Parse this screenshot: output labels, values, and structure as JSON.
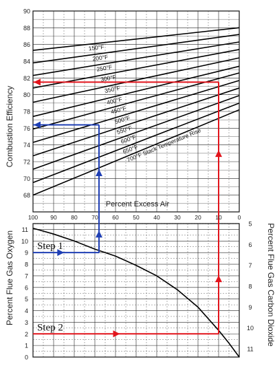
{
  "chart_data": [
    {
      "type": "line",
      "title": "",
      "ylabel": "Combustion Efficiency",
      "xlabel": "Percent Excess Air",
      "x_direction": "decreasing",
      "xlim": [
        0,
        100
      ],
      "ylim": [
        66,
        90
      ],
      "x_ticks": [
        100,
        90,
        80,
        70,
        60,
        50,
        40,
        30,
        20,
        10,
        0
      ],
      "y_ticks": [
        68,
        70,
        72,
        74,
        76,
        78,
        80,
        82,
        84,
        86,
        88,
        90
      ],
      "grid": true,
      "series_label_suffix": " Stack Temperature Rise",
      "series": [
        {
          "name": "150°F",
          "x": [
            100,
            0
          ],
          "y": [
            85.3,
            88.0
          ]
        },
        {
          "name": "200°F",
          "x": [
            100,
            0
          ],
          "y": [
            83.8,
            87.2
          ]
        },
        {
          "name": "250°F",
          "x": [
            100,
            0
          ],
          "y": [
            82.3,
            86.3
          ]
        },
        {
          "name": "300°F",
          "x": [
            100,
            0
          ],
          "y": [
            80.8,
            85.4
          ]
        },
        {
          "name": "350°F",
          "x": [
            100,
            0
          ],
          "y": [
            79.1,
            84.4
          ]
        },
        {
          "name": "400°F",
          "x": [
            100,
            0
          ],
          "y": [
            77.4,
            83.4
          ]
        },
        {
          "name": "450°F",
          "x": [
            100,
            0
          ],
          "y": [
            75.9,
            82.6
          ]
        },
        {
          "name": "500°F",
          "x": [
            100,
            0
          ],
          "y": [
            74.3,
            81.7
          ]
        },
        {
          "name": "550°F",
          "x": [
            100,
            0
          ],
          "y": [
            72.7,
            80.8
          ]
        },
        {
          "name": "600°F",
          "x": [
            100,
            0
          ],
          "y": [
            71.1,
            79.9
          ]
        },
        {
          "name": "650°F",
          "x": [
            100,
            0
          ],
          "y": [
            69.5,
            79.0
          ]
        },
        {
          "name": "700°F",
          "x": [
            100,
            0
          ],
          "y": [
            68.0,
            78.2
          ]
        }
      ],
      "guide": {
        "color": "#1f3fb4",
        "path": [
          {
            "x": 100,
            "y": 76.4
          },
          {
            "x": 68,
            "y": 76.4
          },
          {
            "x": 68,
            "y": 66
          }
        ]
      },
      "guide2": {
        "color": "#e2141c",
        "path": [
          {
            "x": 100,
            "y": 81.5
          },
          {
            "x": 10,
            "y": 81.5
          },
          {
            "x": 10,
            "y": 66
          }
        ]
      }
    },
    {
      "type": "line",
      "title": "",
      "ylabel": "Percent Flue Gas Oxygen",
      "y2label": "Percent Flue Gas Carbon Dioxide",
      "ylim": [
        0,
        11.5
      ],
      "y_ticks": [
        0,
        1,
        2,
        3,
        4,
        5,
        6,
        7,
        8,
        9,
        10,
        11
      ],
      "y2_ticks": [
        5,
        6,
        7,
        8,
        9,
        10,
        11
      ],
      "x_direction": "decreasing",
      "xlim": [
        0,
        100
      ],
      "grid": true,
      "series": [
        {
          "name": "",
          "x": [
            100,
            90,
            80,
            70,
            60,
            50,
            40,
            30,
            20,
            10,
            5,
            0
          ],
          "y": [
            11.1,
            10.6,
            10.0,
            9.3,
            8.7,
            7.9,
            7.0,
            5.8,
            4.3,
            2.3,
            1.2,
            0
          ]
        }
      ],
      "steps": [
        {
          "label": "Step 1",
          "y": 9,
          "x_end": 68,
          "color": "#1f3fb4"
        },
        {
          "label": "Step 2",
          "y": 2,
          "x_end": 10,
          "color": "#e2141c"
        }
      ]
    }
  ]
}
